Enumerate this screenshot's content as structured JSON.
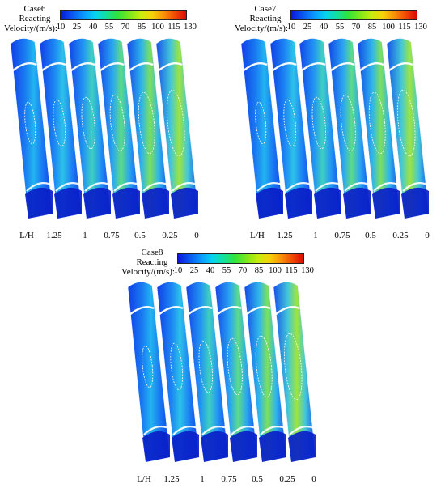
{
  "colorbar": {
    "label": "Velocity/(m/s):",
    "ticks": [
      "10",
      "25",
      "40",
      "55",
      "70",
      "85",
      "100",
      "115",
      "130"
    ]
  },
  "lh_label": "L/H",
  "lh_values": [
    "1.25",
    "1",
    "0.75",
    "0.5",
    "0.25",
    "0"
  ],
  "panels": [
    {
      "case": "Case6",
      "condition": "Reacting"
    },
    {
      "case": "Case7",
      "condition": "Reacting"
    },
    {
      "case": "Case8",
      "condition": "Reacting"
    }
  ],
  "colors": {
    "low": "#0a18d8",
    "mid": "#2ee43c",
    "high": "#d80a06"
  }
}
